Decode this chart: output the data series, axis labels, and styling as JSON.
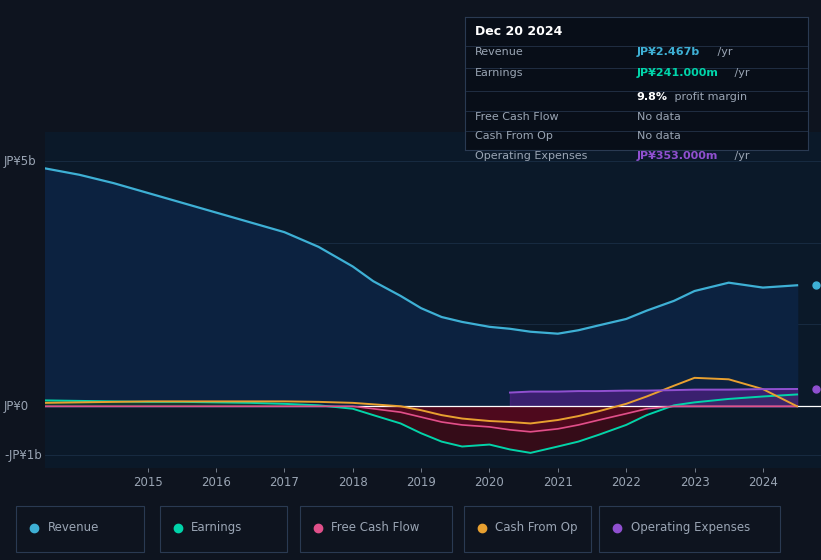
{
  "bg_color": "#0e141f",
  "plot_bg_color": "#0b1929",
  "grid_color": "#1a2e45",
  "text_color": "#9aa5b4",
  "ylabel_top": "JP¥5b",
  "ylabel_zero": "JP¥0",
  "ylabel_bottom": "-JP¥1b",
  "years": [
    2013.5,
    2014.0,
    2014.5,
    2015.0,
    2015.5,
    2016.0,
    2016.5,
    2017.0,
    2017.5,
    2018.0,
    2018.3,
    2018.7,
    2019.0,
    2019.3,
    2019.6,
    2020.0,
    2020.3,
    2020.6,
    2021.0,
    2021.3,
    2021.6,
    2022.0,
    2022.3,
    2022.7,
    2023.0,
    2023.5,
    2024.0,
    2024.5
  ],
  "revenue": [
    4.85,
    4.72,
    4.55,
    4.35,
    4.15,
    3.95,
    3.75,
    3.55,
    3.25,
    2.85,
    2.55,
    2.25,
    2.0,
    1.82,
    1.72,
    1.62,
    1.58,
    1.52,
    1.48,
    1.55,
    1.65,
    1.78,
    1.95,
    2.15,
    2.35,
    2.52,
    2.42,
    2.467
  ],
  "earnings": [
    0.12,
    0.11,
    0.1,
    0.09,
    0.09,
    0.08,
    0.07,
    0.05,
    0.02,
    -0.05,
    -0.18,
    -0.35,
    -0.55,
    -0.72,
    -0.82,
    -0.78,
    -0.88,
    -0.95,
    -0.82,
    -0.72,
    -0.58,
    -0.38,
    -0.18,
    0.02,
    0.08,
    0.15,
    0.2,
    0.241
  ],
  "free_cash_flow": [
    0.0,
    0.0,
    0.0,
    0.0,
    0.0,
    0.0,
    0.0,
    0.0,
    0.0,
    0.0,
    -0.05,
    -0.12,
    -0.22,
    -0.32,
    -0.38,
    -0.42,
    -0.48,
    -0.52,
    -0.46,
    -0.38,
    -0.28,
    -0.15,
    -0.05,
    0.0,
    0.0,
    0.0,
    0.0,
    0.0
  ],
  "cash_from_op": [
    0.07,
    0.08,
    0.09,
    0.1,
    0.1,
    0.1,
    0.1,
    0.1,
    0.09,
    0.07,
    0.04,
    0.0,
    -0.08,
    -0.18,
    -0.25,
    -0.3,
    -0.32,
    -0.35,
    -0.28,
    -0.2,
    -0.1,
    0.05,
    0.2,
    0.42,
    0.58,
    0.55,
    0.35,
    0.0
  ],
  "op_expenses": [
    0.0,
    0.0,
    0.0,
    0.0,
    0.0,
    0.0,
    0.0,
    0.0,
    0.0,
    0.0,
    0.0,
    0.0,
    0.0,
    0.0,
    0.0,
    0.0,
    0.28,
    0.3,
    0.3,
    0.31,
    0.31,
    0.32,
    0.32,
    0.33,
    0.34,
    0.34,
    0.35,
    0.353
  ],
  "revenue_color": "#3eb0d5",
  "earnings_color": "#00d4aa",
  "fcf_color": "#e0508a",
  "cashop_color": "#e8a030",
  "opex_color": "#9050d0",
  "revenue_fill": "#0c2240",
  "earnings_fill_pos": "#164030",
  "earnings_fill_neg": "#380c18",
  "fcf_fill_neg": "#5a0820",
  "opex_fill": "#4a2080",
  "legend_bg": "#111c2a",
  "legend_border": "#2a3a52",
  "info_box_bg": "#080e18",
  "info_box_border": "#2a3a52",
  "xmin": 2013.5,
  "xmax": 2024.85,
  "ymin": -1.25,
  "ymax": 5.6,
  "xticks": [
    2015,
    2016,
    2017,
    2018,
    2019,
    2020,
    2021,
    2022,
    2023,
    2024
  ],
  "ytick_positions": [
    5.0,
    3.33,
    1.67,
    0.0,
    -1.0
  ],
  "info": {
    "title": "Dec 20 2024",
    "revenue_label": "Revenue",
    "revenue_value": "JP¥2.467b",
    "revenue_unit": " /yr",
    "earnings_label": "Earnings",
    "earnings_value": "JP¥241.000m",
    "earnings_unit": " /yr",
    "margin_text": "9.8%",
    "margin_suffix": " profit margin",
    "fcf_label": "Free Cash Flow",
    "fcf_value": "No data",
    "cashop_label": "Cash From Op",
    "cashop_value": "No data",
    "opex_label": "Operating Expenses",
    "opex_value": "JP¥353.000m",
    "opex_unit": " /yr"
  },
  "legend_items": [
    "Revenue",
    "Earnings",
    "Free Cash Flow",
    "Cash From Op",
    "Operating Expenses"
  ],
  "legend_colors": [
    "#3eb0d5",
    "#00d4aa",
    "#e0508a",
    "#e8a030",
    "#9050d0"
  ]
}
